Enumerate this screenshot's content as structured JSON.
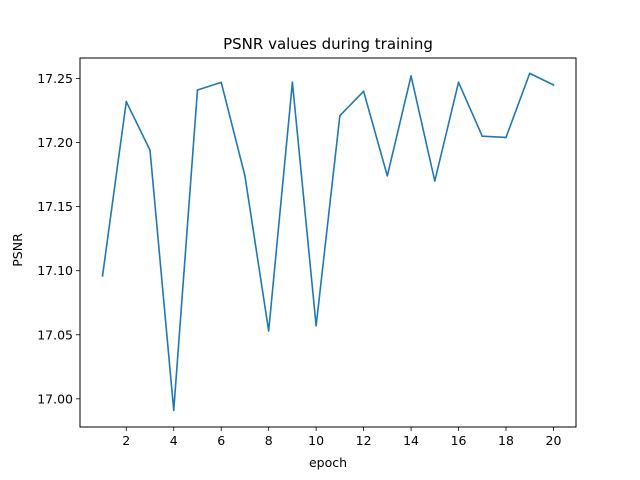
{
  "chart_data": {
    "type": "line",
    "title": "PSNR values during training",
    "xlabel": "epoch",
    "ylabel": "PSNR",
    "xlim": [
      0.05,
      20.95
    ],
    "ylim": [
      16.978,
      17.266
    ],
    "xticks": [
      2,
      4,
      6,
      8,
      10,
      12,
      14,
      16,
      18,
      20
    ],
    "yticks": [
      17.0,
      17.05,
      17.1,
      17.15,
      17.2,
      17.25
    ],
    "ytick_labels": [
      "17.00",
      "17.05",
      "17.10",
      "17.15",
      "17.20",
      "17.25"
    ],
    "grid": false,
    "series": [
      {
        "color": "#1f77b4",
        "x": [
          1,
          2,
          3,
          4,
          5,
          6,
          7,
          8,
          9,
          10,
          11,
          12,
          13,
          14,
          15,
          16,
          17,
          18,
          19,
          20
        ],
        "y": [
          17.096,
          17.232,
          17.194,
          16.991,
          17.241,
          17.247,
          17.174,
          17.053,
          17.247,
          17.057,
          17.221,
          17.24,
          17.174,
          17.252,
          17.17,
          17.247,
          17.205,
          17.204,
          17.254,
          17.245
        ]
      }
    ]
  }
}
